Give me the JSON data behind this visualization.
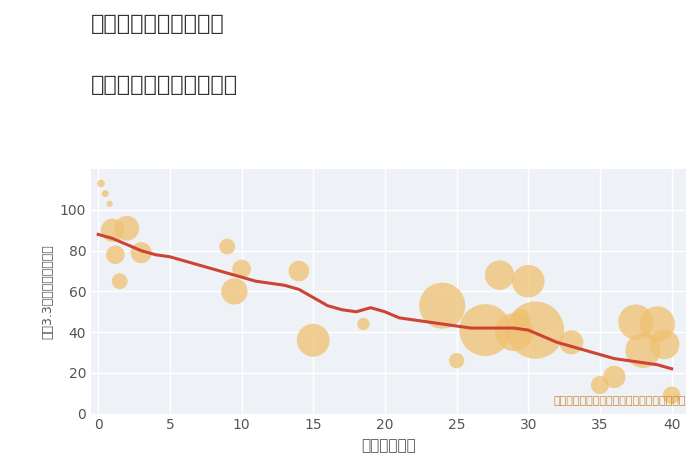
{
  "title_line1": "兵庫県姫路市御立東の",
  "title_line2": "築年数別中古戸建て価格",
  "xlabel": "築年数（年）",
  "ylabel": "坪（3.3㎡）単価（万円）",
  "annotation": "円の大きさは、取引のあった物件面積を示す",
  "background_color": "#ffffff",
  "plot_bg_color": "#eef2f7",
  "grid_color": "#ffffff",
  "bubble_color": "#f0c070",
  "bubble_alpha": 0.75,
  "line_color": "#cc4433",
  "line_width": 2.2,
  "xlim": [
    -0.5,
    41
  ],
  "ylim": [
    0,
    120
  ],
  "xticks": [
    0,
    5,
    10,
    15,
    20,
    25,
    30,
    35,
    40
  ],
  "yticks": [
    0,
    20,
    40,
    60,
    80,
    100
  ],
  "scatter_x": [
    0.2,
    0.5,
    0.8,
    1.0,
    1.2,
    1.5,
    2.0,
    3.0,
    9.0,
    9.5,
    10.0,
    14.0,
    15.0,
    18.5,
    24.0,
    25.0,
    27.0,
    28.0,
    29.0,
    29.5,
    30.0,
    30.5,
    33.0,
    35.0,
    36.0,
    37.5,
    38.0,
    39.0,
    39.5,
    40.0
  ],
  "scatter_y": [
    113,
    108,
    103,
    90,
    78,
    65,
    91,
    79,
    82,
    60,
    71,
    70,
    36,
    44,
    53,
    26,
    41,
    68,
    40,
    47,
    65,
    41,
    35,
    14,
    18,
    45,
    31,
    44,
    34,
    9
  ],
  "scatter_size": [
    30,
    25,
    20,
    280,
    180,
    130,
    320,
    230,
    130,
    360,
    180,
    220,
    560,
    80,
    1100,
    120,
    1400,
    450,
    750,
    160,
    550,
    1700,
    300,
    170,
    260,
    640,
    640,
    640,
    460,
    160
  ],
  "line_x": [
    0,
    1,
    2,
    3,
    4,
    5,
    6,
    7,
    8,
    9,
    10,
    11,
    12,
    13,
    14,
    15,
    16,
    17,
    18,
    19,
    20,
    21,
    22,
    23,
    24,
    25,
    26,
    27,
    28,
    29,
    30,
    31,
    32,
    33,
    34,
    35,
    36,
    37,
    38,
    39,
    40
  ],
  "line_y": [
    88,
    86,
    83,
    80,
    78,
    77,
    75,
    73,
    71,
    69,
    67,
    65,
    64,
    63,
    61,
    57,
    53,
    51,
    50,
    52,
    50,
    47,
    46,
    45,
    44,
    43,
    42,
    42,
    42,
    42,
    41,
    38,
    35,
    33,
    31,
    29,
    27,
    26,
    25,
    24,
    22
  ],
  "title_color": "#333333",
  "title_fontsize": 16,
  "annotation_color": "#cc8833",
  "annotation_fontsize": 8,
  "tick_color": "#555555",
  "tick_fontsize": 10,
  "xlabel_fontsize": 11,
  "ylabel_fontsize": 9
}
